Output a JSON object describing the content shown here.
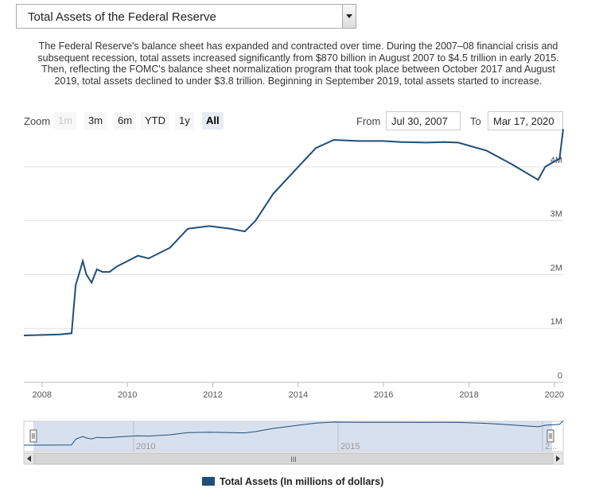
{
  "selector": {
    "selected": "Total Assets of the Federal Reserve"
  },
  "description": "The Federal Reserve's balance sheet has expanded and contracted over time. During the 2007–08 financial crisis and subsequent recession, total assets increased significantly from $870 billion in August 2007 to $4.5 trillion in early 2015. Then, reflecting the FOMC's balance sheet normalization program that took place between October 2017 and August 2019, total assets declined to under $3.8 trillion. Beginning in September 2019, total assets started to increase.",
  "zoom": {
    "label": "Zoom",
    "buttons": [
      {
        "label": "1m",
        "state": "disabled"
      },
      {
        "label": "3m",
        "state": "normal"
      },
      {
        "label": "6m",
        "state": "normal"
      },
      {
        "label": "YTD",
        "state": "normal"
      },
      {
        "label": "1y",
        "state": "normal"
      },
      {
        "label": "All",
        "state": "active"
      }
    ]
  },
  "range": {
    "from_label": "From",
    "from_value": "Jul 30, 2007",
    "to_label": "To",
    "to_value": "Mar 17, 2020"
  },
  "navigator": {
    "ticks": [
      "2010",
      "2015",
      "2..."
    ],
    "scroll_grip": "III"
  },
  "legend": {
    "label": "Total Assets (In millions of dollars)"
  },
  "colors": {
    "series": "#1f4e79",
    "navigator_fill": "#c9d6ea",
    "grid": "#e0e0e0"
  },
  "chart_data": {
    "type": "line",
    "xlabel": "",
    "ylabel": "",
    "x_ticks": [
      "2008",
      "2010",
      "2012",
      "2014",
      "2016",
      "2018",
      "2020"
    ],
    "y_ticks": [
      "0",
      "1M",
      "2M",
      "3M",
      "4M"
    ],
    "xlim": [
      "2007-07-30",
      "2020-03-17"
    ],
    "ylim": [
      0,
      4500000
    ],
    "grid": "horizontal",
    "series": [
      {
        "name": "Total Assets (In millions of dollars)",
        "x": [
          "2007-07-30",
          "2008-01-01",
          "2008-06-01",
          "2008-09-10",
          "2008-10-15",
          "2008-12-15",
          "2009-01-15",
          "2009-03-01",
          "2009-04-15",
          "2009-06-01",
          "2009-08-01",
          "2009-10-01",
          "2010-01-01",
          "2010-04-01",
          "2010-07-01",
          "2011-01-01",
          "2011-06-01",
          "2011-12-01",
          "2012-06-01",
          "2012-10-01",
          "2013-01-01",
          "2013-06-01",
          "2014-01-01",
          "2014-06-01",
          "2014-11-01",
          "2015-06-01",
          "2016-01-01",
          "2016-06-01",
          "2017-01-01",
          "2017-06-01",
          "2017-10-01",
          "2018-06-01",
          "2019-01-01",
          "2019-08-15",
          "2019-10-15",
          "2020-01-01",
          "2020-02-15",
          "2020-03-17"
        ],
        "y": [
          870000,
          880000,
          890000,
          910000,
          1800000,
          2250000,
          2000000,
          1850000,
          2100000,
          2050000,
          2050000,
          2150000,
          2250000,
          2350000,
          2300000,
          2500000,
          2850000,
          2900000,
          2850000,
          2800000,
          3000000,
          3500000,
          4000000,
          4350000,
          4500000,
          4480000,
          4480000,
          4460000,
          4450000,
          4460000,
          4450000,
          4300000,
          4050000,
          3760000,
          4000000,
          4100000,
          4150000,
          4700000
        ]
      }
    ]
  }
}
